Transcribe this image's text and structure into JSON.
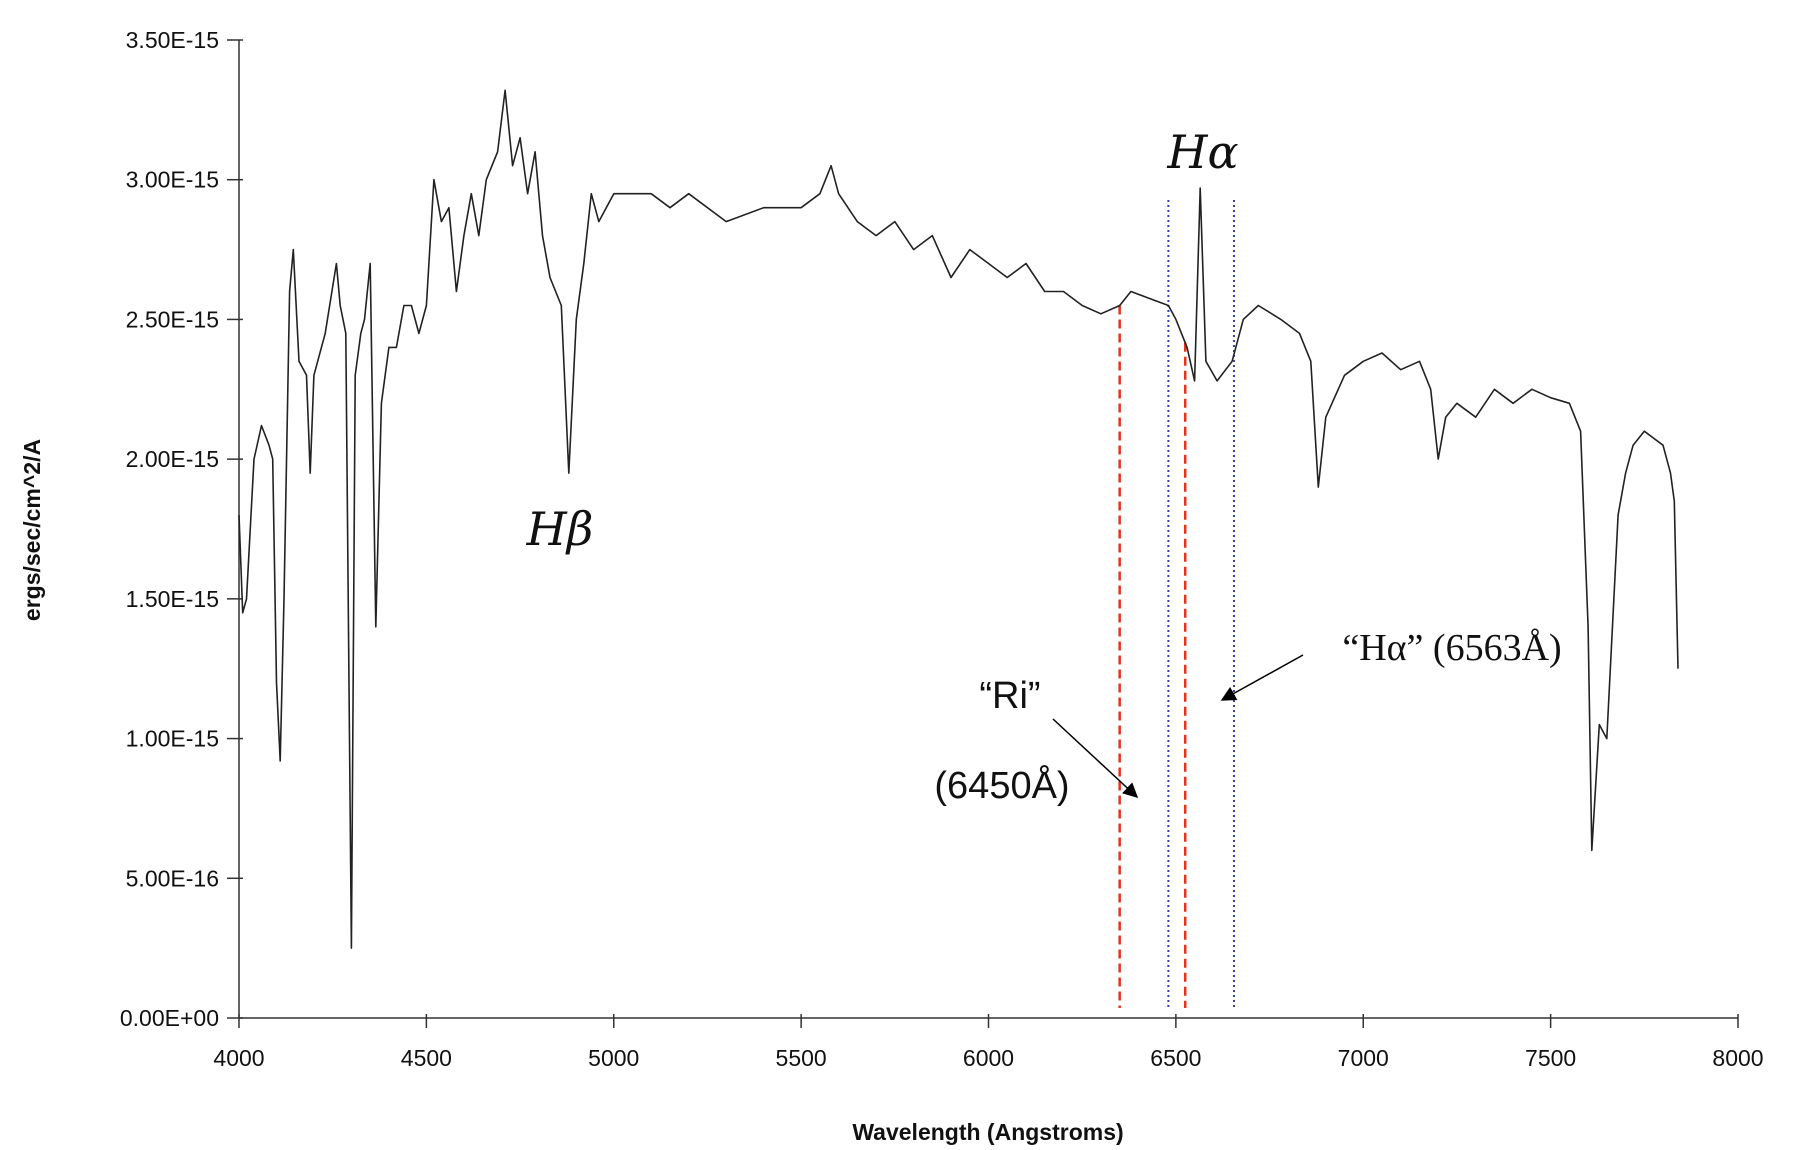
{
  "chart_data": {
    "type": "line",
    "xlabel": "Wavelength (Angstroms)",
    "ylabel": "ergs/sec/cm^2/A",
    "color": "#222222",
    "x": [
      4000,
      4010,
      4020,
      4040,
      4060,
      4080,
      4090,
      4100,
      4110,
      4120,
      4135,
      4145,
      4160,
      4180,
      4190,
      4200,
      4230,
      4260,
      4270,
      4285,
      4300,
      4310,
      4325,
      4335,
      4350,
      4365,
      4380,
      4400,
      4420,
      4440,
      4460,
      4480,
      4500,
      4520,
      4540,
      4560,
      4580,
      4600,
      4620,
      4640,
      4660,
      4690,
      4710,
      4730,
      4750,
      4770,
      4790,
      4810,
      4830,
      4860,
      4880,
      4900,
      4920,
      4940,
      4960,
      5000,
      5100,
      5150,
      5200,
      5300,
      5400,
      5500,
      5550,
      5580,
      5600,
      5650,
      5700,
      5750,
      5800,
      5850,
      5900,
      5950,
      6000,
      6050,
      6100,
      6150,
      6200,
      6250,
      6300,
      6350,
      6380,
      6420,
      6480,
      6500,
      6530,
      6550,
      6565,
      6580,
      6610,
      6650,
      6680,
      6720,
      6780,
      6830,
      6860,
      6880,
      6900,
      6950,
      7000,
      7050,
      7100,
      7150,
      7180,
      7200,
      7220,
      7250,
      7300,
      7350,
      7400,
      7450,
      7500,
      7550,
      7580,
      7600,
      7610,
      7630,
      7650,
      7680,
      7700,
      7720,
      7750,
      7800,
      7820,
      7830,
      7840
    ],
    "values": [
      1.8e-15,
      1.45e-15,
      1.5e-15,
      2e-15,
      2.12e-15,
      2.05e-15,
      2e-15,
      1.2e-15,
      9.2e-16,
      1.5e-15,
      2.6e-15,
      2.75e-15,
      2.35e-15,
      2.3e-15,
      1.95e-15,
      2.3e-15,
      2.45e-15,
      2.7e-15,
      2.55e-15,
      2.45e-15,
      2.5e-16,
      2.3e-15,
      2.45e-15,
      2.5e-15,
      2.7e-15,
      1.4e-15,
      2.2e-15,
      2.4e-15,
      2.4e-15,
      2.55e-15,
      2.55e-15,
      2.45e-15,
      2.55e-15,
      3e-15,
      2.85e-15,
      2.9e-15,
      2.6e-15,
      2.8e-15,
      2.95e-15,
      2.8e-15,
      3e-15,
      3.1e-15,
      3.32e-15,
      3.05e-15,
      3.15e-15,
      2.95e-15,
      3.1e-15,
      2.8e-15,
      2.65e-15,
      2.55e-15,
      1.95e-15,
      2.5e-15,
      2.7e-15,
      2.95e-15,
      2.85e-15,
      2.95e-15,
      2.95e-15,
      2.9e-15,
      2.95e-15,
      2.85e-15,
      2.9e-15,
      2.9e-15,
      2.95e-15,
      3.05e-15,
      2.95e-15,
      2.85e-15,
      2.8e-15,
      2.85e-15,
      2.75e-15,
      2.8e-15,
      2.65e-15,
      2.75e-15,
      2.7e-15,
      2.65e-15,
      2.7e-15,
      2.6e-15,
      2.6e-15,
      2.55e-15,
      2.52e-15,
      2.55e-15,
      2.6e-15,
      2.58e-15,
      2.55e-15,
      2.5e-15,
      2.4e-15,
      2.28e-15,
      2.97e-15,
      2.35e-15,
      2.28e-15,
      2.35e-15,
      2.5e-15,
      2.55e-15,
      2.5e-15,
      2.45e-15,
      2.35e-15,
      1.9e-15,
      2.15e-15,
      2.3e-15,
      2.35e-15,
      2.38e-15,
      2.32e-15,
      2.35e-15,
      2.25e-15,
      2e-15,
      2.15e-15,
      2.2e-15,
      2.15e-15,
      2.25e-15,
      2.2e-15,
      2.25e-15,
      2.22e-15,
      2.2e-15,
      2.1e-15,
      1.4e-15,
      6e-16,
      1.05e-15,
      1e-15,
      1.8e-15,
      1.95e-15,
      2.05e-15,
      2.1e-15,
      2.05e-15,
      1.95e-15,
      1.85e-15,
      1.25e-15
    ],
    "xlim": [
      4000,
      8000
    ],
    "xticks": [
      4000,
      4500,
      5000,
      5500,
      6000,
      6500,
      7000,
      7500,
      8000
    ],
    "ylim": [
      0,
      3.5e-15
    ],
    "yticks": [
      {
        "value": 0,
        "label": "0.00E+00"
      },
      {
        "value": 5e-16,
        "label": "5.00E-16"
      },
      {
        "value": 1e-15,
        "label": "1.00E-15"
      },
      {
        "value": 1.5e-15,
        "label": "1.50E-15"
      },
      {
        "value": 2e-15,
        "label": "2.00E-15"
      },
      {
        "value": 2.5e-15,
        "label": "2.50E-15"
      },
      {
        "value": 3e-15,
        "label": "3.00E-15"
      },
      {
        "value": 3.5e-15,
        "label": "3.50E-15"
      }
    ],
    "grid": false,
    "reference_lines": [
      {
        "x": 6350,
        "color": "#e8321e",
        "style": "dashed"
      },
      {
        "x": 6525,
        "color": "#e8321e",
        "style": "dashed"
      },
      {
        "x": 6480,
        "color": "#3340b0",
        "style": "dotted"
      },
      {
        "x": 6655,
        "color": "#3340b0",
        "style": "dotted"
      }
    ],
    "annotations": [
      "Hβ",
      "Hα",
      "“Ri”",
      "(6450Å)",
      "“Hα” (6563Å)"
    ]
  }
}
